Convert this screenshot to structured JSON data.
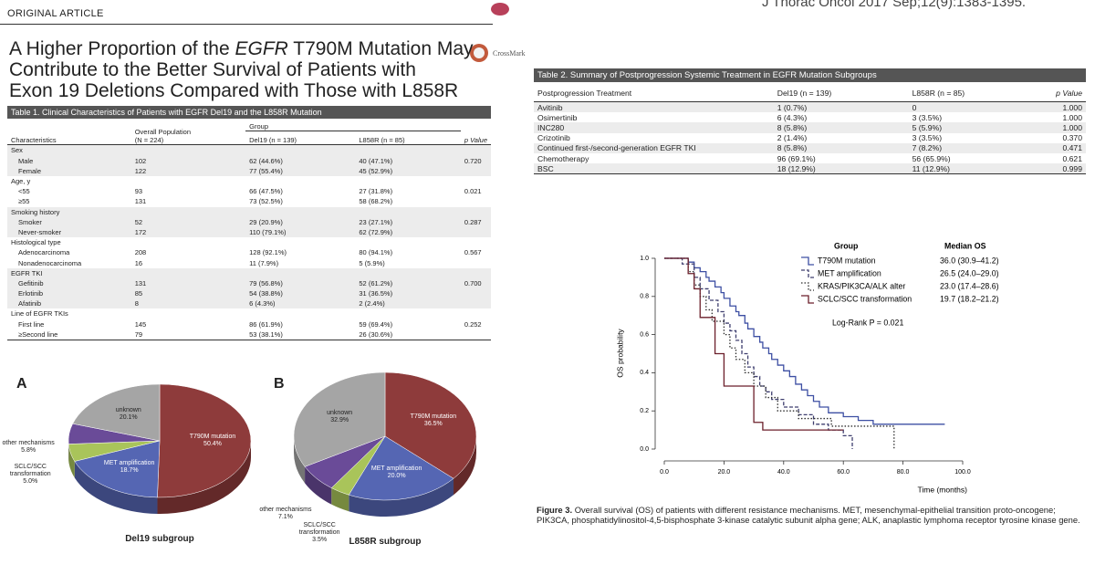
{
  "header": {
    "section": "ORIGINAL ARTICLE",
    "citation": "J Thorac Oncol 2017 Sep;12(9):1383-1395.",
    "crossmark": "CrossMark"
  },
  "title": {
    "line1": [
      "A Higher Proportion of the ",
      "EGFR",
      " T790M Mutation May"
    ],
    "line2": "Contribute to the Better Survival of Patients with",
    "line3": "Exon 19 Deletions Compared with Those with L858R"
  },
  "table1": {
    "caption": "Table 1. Clinical Characteristics of Patients with EGFR Del19 and the L858R Mutation",
    "header": {
      "characteristics": "Characteristics",
      "overall": [
        "Overall Population",
        "(N = 224)"
      ],
      "group": "Group",
      "del19": "Del19 (n = 139)",
      "l858r": "L858R (n = 85)",
      "p": "p Value"
    },
    "sections": [
      {
        "label": "Sex",
        "p": "0.720",
        "rows": [
          [
            "Male",
            "102",
            "62 (44.6%)",
            "40 (47.1%)"
          ],
          [
            "Female",
            "122",
            "77 (55.4%)",
            "45 (52.9%)"
          ]
        ]
      },
      {
        "label": "Age, y",
        "p": "0.021",
        "rows": [
          [
            "<55",
            "93",
            "66 (47.5%)",
            "27 (31.8%)"
          ],
          [
            "≥55",
            "131",
            "73 (52.5%)",
            "58 (68.2%)"
          ]
        ]
      },
      {
        "label": "Smoking history",
        "p": "0.287",
        "rows": [
          [
            "Smoker",
            "52",
            "29 (20.9%)",
            "23 (27.1%)"
          ],
          [
            "Never-smoker",
            "172",
            "110 (79.1%)",
            "62 (72.9%)"
          ]
        ]
      },
      {
        "label": "Histological type",
        "p": "0.567",
        "rows": [
          [
            "Adenocarcinoma",
            "208",
            "128 (92.1%)",
            "80 (94.1%)"
          ],
          [
            "Nonadenocarcinoma",
            "16",
            "11 (7.9%)",
            "5 (5.9%)"
          ]
        ]
      },
      {
        "label": "EGFR TKI",
        "p": "0.700",
        "rows": [
          [
            "Gefitinib",
            "131",
            "79 (56.8%)",
            "52 (61.2%)"
          ],
          [
            "Erlotinib",
            "85",
            "54 (38.8%)",
            "31 (36.5%)"
          ],
          [
            "Afatinib",
            "8",
            "6 (4.3%)",
            "2 (2.4%)"
          ]
        ]
      },
      {
        "label": "Line of EGFR TKIs",
        "p": "0.252",
        "rows": [
          [
            "First line",
            "145",
            "86 (61.9%)",
            "59 (69.4%)"
          ],
          [
            "≥Second line",
            "79",
            "53 (38.1%)",
            "26 (30.6%)"
          ]
        ]
      }
    ]
  },
  "table2": {
    "caption": "Table 2. Summary of Postprogression Systemic Treatment in EGFR Mutation Subgroups",
    "header": [
      "Postprogression Treatment",
      "Del19 (n = 139)",
      "L858R (n = 85)",
      "p Value"
    ],
    "rows": [
      [
        "Avitinib",
        "1 (0.7%)",
        "0",
        "1.000"
      ],
      [
        "Osimertinib",
        "6 (4.3%)",
        "3 (3.5%)",
        "1.000"
      ],
      [
        "INC280",
        "8 (5.8%)",
        "5 (5.9%)",
        "1.000"
      ],
      [
        "Crizotinib",
        "2 (1.4%)",
        "3 (3.5%)",
        "0.370"
      ],
      [
        "Continued first-/second-generation EGFR TKI",
        "8 (5.8%)",
        "7 (8.2%)",
        "0.471"
      ],
      [
        "Chemotherapy",
        "96 (69.1%)",
        "56 (65.9%)",
        "0.621"
      ],
      [
        "BSC",
        "18 (12.9%)",
        "11 (12.9%)",
        "0.999"
      ]
    ]
  },
  "chart_data": [
    {
      "type": "pie",
      "panel": "A",
      "title": "Del19 subgroup",
      "categories": [
        "T790M mutation",
        "MET amplification",
        "SCLC/SCC transformation",
        "other mechanisms",
        "unknown"
      ],
      "values": [
        50.4,
        18.7,
        5.0,
        5.8,
        20.1
      ],
      "value_labels": [
        "50.4%",
        "18.7%",
        "5.0%",
        "5.8%",
        "20.1%"
      ],
      "colors": [
        "#8e3b3b",
        "#5566b3",
        "#a9c45a",
        "#6a4b98",
        "#a5a5a5"
      ]
    },
    {
      "type": "pie",
      "panel": "B",
      "title": "L858R subgroup",
      "categories": [
        "T790M mutation",
        "MET amplification",
        "SCLC/SCC transformation",
        "other mechanisms",
        "unknown"
      ],
      "values": [
        36.5,
        20.0,
        3.5,
        7.1,
        32.9
      ],
      "value_labels": [
        "36.5%",
        "20.0%",
        "3.5%",
        "7.1%",
        "32.9%"
      ],
      "colors": [
        "#8e3b3b",
        "#5566b3",
        "#a9c45a",
        "#6a4b98",
        "#a5a5a5"
      ]
    },
    {
      "type": "km",
      "xlabel": "Time (months)",
      "ylabel": "OS probability",
      "xlim": [
        0,
        100
      ],
      "ylim": [
        0,
        1
      ],
      "xticks": [
        {
          "value": 0,
          "label": "0.0"
        },
        {
          "value": 20,
          "label": "20.0"
        },
        {
          "value": 40,
          "label": "40.0"
        },
        {
          "value": 60,
          "label": "60.0"
        },
        {
          "value": 80,
          "label": "80.0"
        },
        {
          "value": 100,
          "label": "100.0"
        }
      ],
      "yticks": [
        {
          "value": 0,
          "label": "0.0"
        },
        {
          "value": 0.2,
          "label": "0.2"
        },
        {
          "value": 0.4,
          "label": "0.4"
        },
        {
          "value": 0.6,
          "label": "0.6"
        },
        {
          "value": 0.8,
          "label": "0.8"
        },
        {
          "value": 1,
          "label": "1.0"
        }
      ],
      "legend_title": "Group",
      "median_title": "Median OS",
      "annotation": "Log-Rank P = 0.021",
      "series": [
        {
          "name": "T790M mutation",
          "median": "36.0 (30.9–41.2)",
          "color": "#3d4fa3",
          "dash": "solid",
          "x": [
            0,
            8,
            10,
            12,
            14,
            15,
            17,
            19,
            20,
            22,
            24,
            25,
            27,
            28,
            30,
            32,
            33,
            35,
            36,
            38,
            40,
            42,
            44,
            46,
            48,
            50,
            52,
            55,
            60,
            65,
            70,
            94
          ],
          "values": [
            1,
            0.98,
            0.95,
            0.93,
            0.9,
            0.88,
            0.85,
            0.82,
            0.79,
            0.75,
            0.72,
            0.7,
            0.66,
            0.63,
            0.59,
            0.56,
            0.53,
            0.5,
            0.47,
            0.44,
            0.41,
            0.38,
            0.34,
            0.31,
            0.28,
            0.25,
            0.22,
            0.19,
            0.17,
            0.15,
            0.13,
            0.13
          ]
        },
        {
          "name": "MET amplification",
          "median": "26.5 (24.0–29.0)",
          "color": "#3e3e6e",
          "dash": "dashed",
          "x": [
            0,
            6,
            10,
            12,
            15,
            18,
            20,
            22,
            24,
            26,
            28,
            30,
            32,
            34,
            36,
            40,
            45,
            50,
            55,
            60,
            63
          ],
          "values": [
            1,
            0.97,
            0.9,
            0.84,
            0.78,
            0.72,
            0.66,
            0.62,
            0.57,
            0.5,
            0.43,
            0.38,
            0.33,
            0.3,
            0.26,
            0.22,
            0.18,
            0.13,
            0.1,
            0.07,
            0
          ]
        },
        {
          "name": "KRAS/PIK3CA/ALK alter",
          "median": "23.0 (17.4–28.6)",
          "color": "#2b2b2b",
          "dash": "dotted",
          "x": [
            0,
            8,
            10,
            12,
            14,
            16,
            20,
            22,
            24,
            27,
            30,
            34,
            38,
            45,
            56,
            77
          ],
          "values": [
            1,
            0.93,
            0.86,
            0.8,
            0.73,
            0.67,
            0.6,
            0.53,
            0.47,
            0.4,
            0.33,
            0.27,
            0.2,
            0.16,
            0.12,
            0
          ]
        },
        {
          "name": "SCLC/SCC transformation",
          "median": "19.7 (18.2–21.2)",
          "color": "#6b1f2a",
          "dash": "solid",
          "x": [
            0,
            8,
            10,
            12,
            17,
            20,
            30,
            33,
            60
          ],
          "values": [
            1,
            0.92,
            0.84,
            0.69,
            0.5,
            0.33,
            0.14,
            0.1,
            0.1
          ]
        }
      ]
    }
  ],
  "figure3_caption": {
    "label": "Figure 3.",
    "text": "Overall survival (OS) of patients with different resistance mechanisms. MET, mesenchymal-epithelial transition proto-oncogene; PIK3CA, phosphatidylinositol-4,5-bisphosphate 3-kinase catalytic subunit alpha gene; ALK, anaplastic lymphoma receptor tyrosine kinase gene."
  }
}
